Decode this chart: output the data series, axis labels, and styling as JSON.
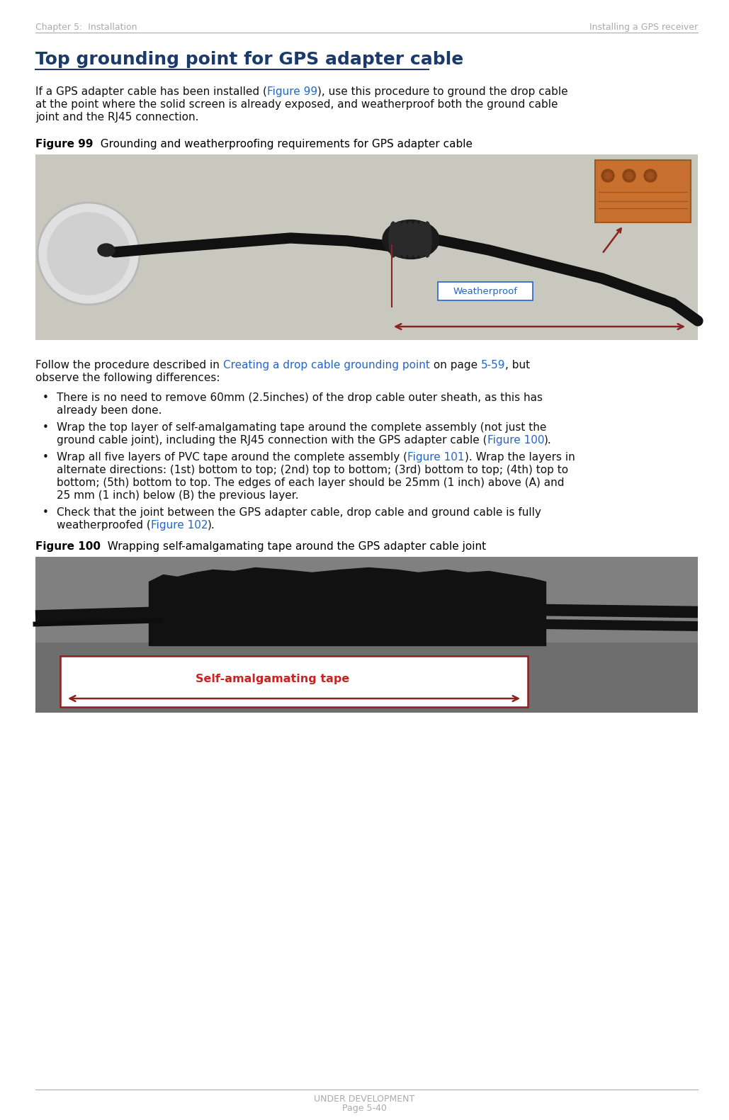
{
  "page_bg": "#ffffff",
  "header_left": "Chapter 5:  Installation",
  "header_right": "Installing a GPS receiver",
  "header_color": "#aaaaaa",
  "header_fontsize": 9,
  "section_title": "Top grounding point for GPS adapter cable",
  "section_title_color": "#1a3a6b",
  "section_title_fontsize": 18,
  "para_fontsize": 11,
  "para_color": "#111111",
  "link_color": "#2266cc",
  "fig_label_bold_color": "#000000",
  "fig_label_fontsize": 11,
  "fig99_bg": "#c8c8be",
  "fig99_weatherproof_text": "Weatherproof",
  "fig99_weatherproof_color": "#2266cc",
  "arrow_color": "#8b2222",
  "fig100_bg": "#7a7a7a",
  "fig100_self_amalgamating_text": "Self-amalgamating tape",
  "fig100_self_amalgamating_color": "#cc2222",
  "footer_line1": "UNDER DEVELOPMENT",
  "footer_line2": "Page 5-40",
  "footer_color": "#aaaaaa",
  "footer_fontsize": 9
}
